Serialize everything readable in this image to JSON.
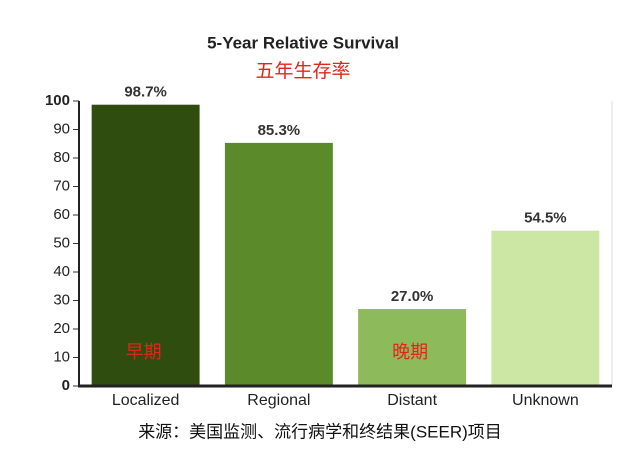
{
  "chart_data": {
    "type": "bar",
    "title": "5-Year Relative Survival",
    "subtitle": "五年生存率",
    "categories": [
      "Localized",
      "Regional",
      "Distant",
      "Unknown"
    ],
    "values": [
      98.7,
      85.3,
      27.0,
      54.5
    ],
    "value_labels": [
      "98.7%",
      "85.3%",
      "27.0%",
      "54.5%"
    ],
    "colors": [
      "#2e4d0e",
      "#5b8a2b",
      "#8dba5b",
      "#cbe7a3"
    ],
    "annotations": [
      "早期",
      "晚期"
    ],
    "ylim": [
      0,
      100
    ],
    "yticks": [
      0,
      10,
      20,
      30,
      40,
      50,
      60,
      70,
      80,
      90,
      100
    ],
    "source": "来源：美国监测、流行病学和终结果(SEER)项目"
  }
}
